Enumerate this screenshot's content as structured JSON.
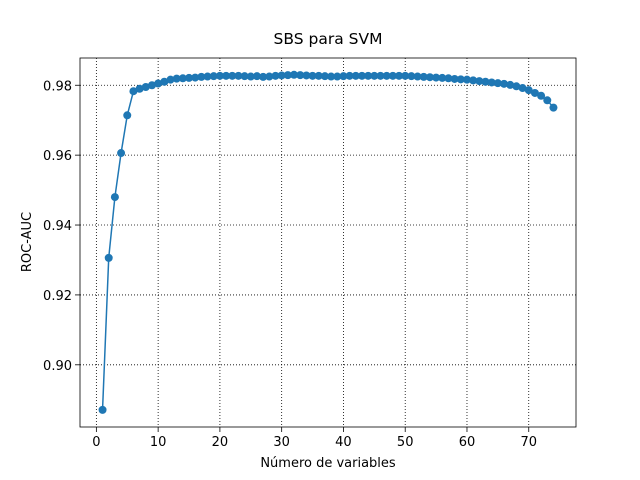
{
  "chart_data": {
    "type": "line",
    "title": "SBS para SVM",
    "xlabel": "Número de variables",
    "ylabel": "ROC-AUC",
    "x": [
      1,
      2,
      3,
      4,
      5,
      6,
      7,
      8,
      9,
      10,
      11,
      12,
      13,
      14,
      15,
      16,
      17,
      18,
      19,
      20,
      21,
      22,
      23,
      24,
      25,
      26,
      27,
      28,
      29,
      30,
      31,
      32,
      33,
      34,
      35,
      36,
      37,
      38,
      39,
      40,
      41,
      42,
      43,
      44,
      45,
      46,
      47,
      48,
      49,
      50,
      51,
      52,
      53,
      54,
      55,
      56,
      57,
      58,
      59,
      60,
      61,
      62,
      63,
      64,
      65,
      66,
      67,
      68,
      69,
      70,
      71,
      72,
      73,
      74
    ],
    "series": [
      {
        "color": "#1f77b4",
        "values": [
          0.8871,
          0.9306,
          0.948,
          0.9606,
          0.9714,
          0.9783,
          0.979,
          0.9795,
          0.98,
          0.9805,
          0.981,
          0.9816,
          0.9819,
          0.982,
          0.9821,
          0.9822,
          0.9824,
          0.9825,
          0.9826,
          0.9827,
          0.9827,
          0.9827,
          0.9827,
          0.9826,
          0.9825,
          0.9826,
          0.9824,
          0.9825,
          0.9827,
          0.9828,
          0.9829,
          0.983,
          0.9829,
          0.9828,
          0.9827,
          0.9827,
          0.9826,
          0.9825,
          0.9825,
          0.9826,
          0.9827,
          0.9827,
          0.9827,
          0.9827,
          0.9827,
          0.9827,
          0.9827,
          0.9827,
          0.9827,
          0.9827,
          0.9826,
          0.9825,
          0.9824,
          0.9823,
          0.9822,
          0.9821,
          0.982,
          0.9818,
          0.9817,
          0.9816,
          0.9814,
          0.9812,
          0.981,
          0.9808,
          0.9806,
          0.9804,
          0.9801,
          0.9797,
          0.9792,
          0.9786,
          0.9778,
          0.977,
          0.9757,
          0.9736
        ]
      }
    ],
    "xlim": [
      -2.65,
      77.65
    ],
    "ylim": [
      0.8822,
      0.9878
    ],
    "xticks": [
      0,
      10,
      20,
      30,
      40,
      50,
      60,
      70
    ],
    "yticks": [
      {
        "value": 0.9,
        "label": "0.90"
      },
      0.92,
      0.94,
      0.96,
      0.98
    ],
    "grid": true
  }
}
